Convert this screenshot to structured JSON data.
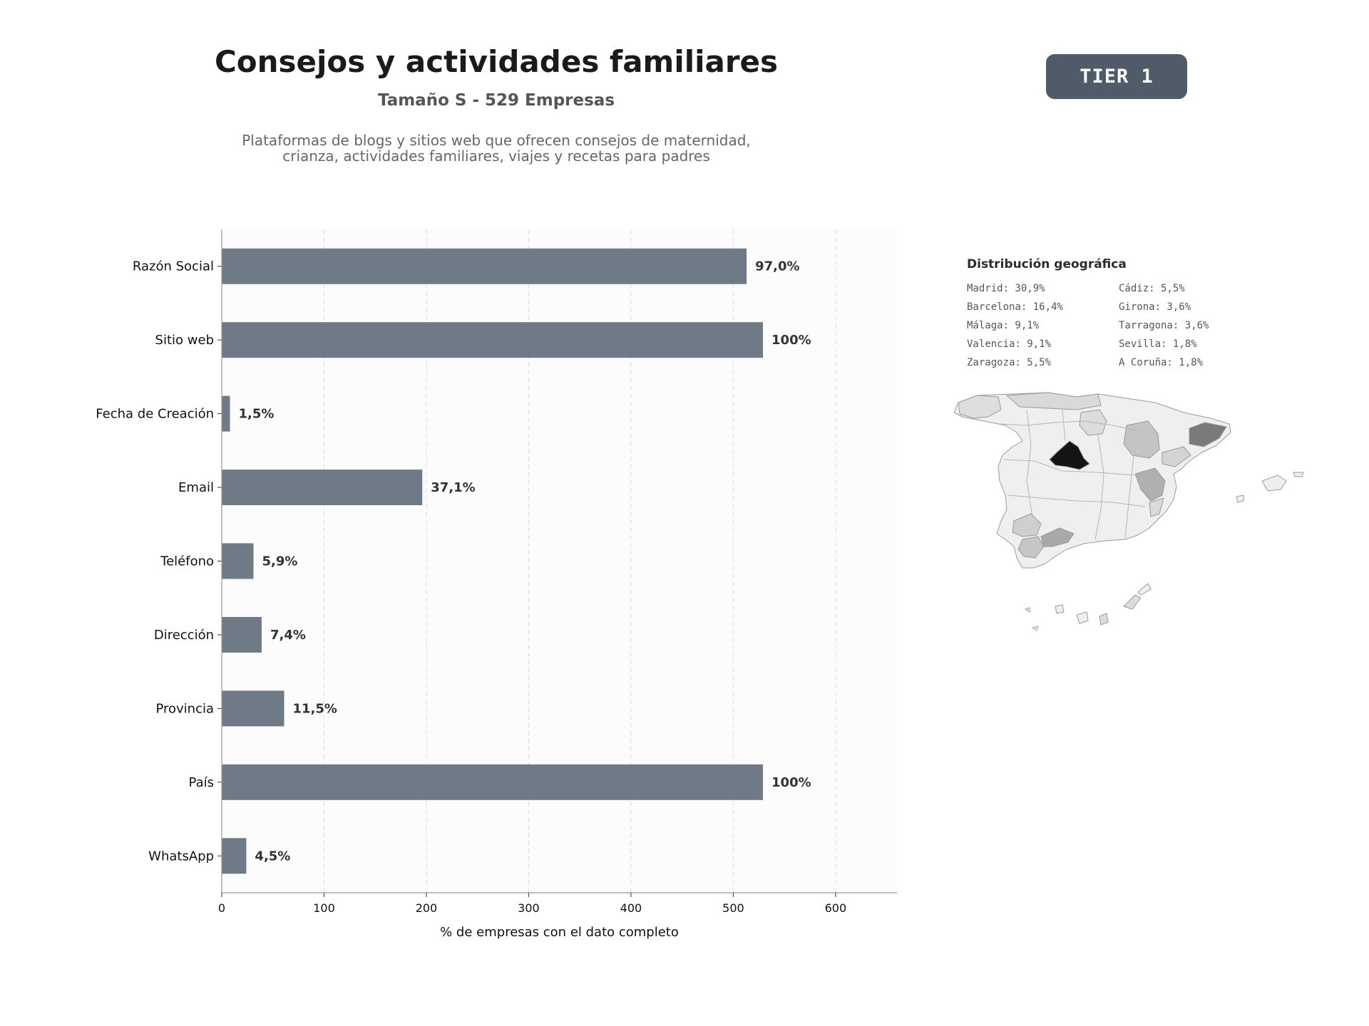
{
  "header": {
    "title": "Consejos y actividades familiares",
    "subtitle": "Tamaño S - 529 Empresas",
    "description_line1": "Plataformas de blogs y sitios web que ofrecen consejos de maternidad,",
    "description_line2": "crianza, actividades familiares, viajes y recetas para padres",
    "tier": "TIER 1"
  },
  "colors": {
    "bar": "#6e7a85",
    "badge": "#4f5b68",
    "plot_bg": "#fcfcfc",
    "grid": "#dddddd"
  },
  "chart_data": {
    "type": "bar",
    "orientation": "horizontal",
    "categories": [
      "Razón Social",
      "Sitio web",
      "Fecha de Creación",
      "Email",
      "Teléfono",
      "Dirección",
      "Provincia",
      "País",
      "WhatsApp"
    ],
    "values": [
      513,
      529,
      8,
      196,
      31,
      39,
      61,
      529,
      24
    ],
    "value_labels": [
      "97,0%",
      "100%",
      "1,5%",
      "37,1%",
      "5,9%",
      "7,4%",
      "11,5%",
      "100%",
      "4,5%"
    ],
    "xlabel": "% de empresas con el dato completo",
    "ylabel": "",
    "xlim": [
      0,
      660
    ],
    "xticks": [
      0,
      100,
      200,
      300,
      400,
      500,
      600
    ],
    "grid": "vertical dashed"
  },
  "geo": {
    "title": "Distribución geográfica",
    "items": [
      "Madrid: 30,9%",
      "Cádiz: 5,5%",
      "Barcelona: 16,4%",
      "Girona: 3,6%",
      "Málaga: 9,1%",
      "Tarragona: 3,6%",
      "Valencia: 9,1%",
      "Sevilla: 1,8%",
      "Zaragoza: 5,5%",
      "A Coruña: 1,8%"
    ]
  }
}
